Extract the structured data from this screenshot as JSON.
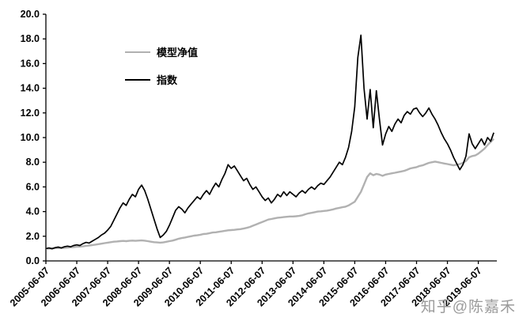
{
  "watermark": {
    "text": "知乎@陈嘉禾",
    "color": "#9b9b9b"
  },
  "chart_data": {
    "type": "line",
    "title": "",
    "xlabel": "",
    "ylabel": "",
    "axis_color": "#000000",
    "background_color": "#ffffff",
    "ylim": [
      0,
      20
    ],
    "xlim": [
      0,
      14.6
    ],
    "y_tick_labels": [
      "0.0",
      "2.0",
      "4.0",
      "6.0",
      "8.0",
      "10.0",
      "12.0",
      "14.0",
      "16.0",
      "18.0",
      "20.0"
    ],
    "y_tick_values": [
      0,
      2,
      4,
      6,
      8,
      10,
      12,
      14,
      16,
      18,
      20
    ],
    "x_tick_labels": [
      "2005-06-07",
      "2006-06-07",
      "2007-06-07",
      "2008-06-07",
      "2009-06-07",
      "2010-06-07",
      "2011-06-07",
      "2012-06-07",
      "2013-06-07",
      "2014-06-07",
      "2015-06-07",
      "2016-06-07",
      "2017-06-07",
      "2018-06-07",
      "2019-06-07"
    ],
    "x_tick_values": [
      0,
      1,
      2,
      3,
      4,
      5,
      6,
      7,
      8,
      9,
      10,
      11,
      12,
      13,
      14
    ],
    "legend_position": "upper-left-inside",
    "grid": false,
    "x0": 0,
    "dx": 0.1,
    "series": [
      {
        "name": "模型净值",
        "color": "#b1b1b1",
        "stroke_width": 2.4,
        "values": [
          1.0,
          1.0,
          1.02,
          1.03,
          1.05,
          1.04,
          1.06,
          1.08,
          1.1,
          1.12,
          1.15,
          1.16,
          1.18,
          1.22,
          1.25,
          1.28,
          1.32,
          1.36,
          1.4,
          1.44,
          1.48,
          1.52,
          1.56,
          1.58,
          1.6,
          1.62,
          1.6,
          1.63,
          1.65,
          1.63,
          1.65,
          1.66,
          1.64,
          1.6,
          1.56,
          1.52,
          1.5,
          1.48,
          1.5,
          1.55,
          1.6,
          1.65,
          1.72,
          1.8,
          1.85,
          1.9,
          1.95,
          2.0,
          2.05,
          2.08,
          2.12,
          2.18,
          2.2,
          2.25,
          2.3,
          2.32,
          2.36,
          2.4,
          2.44,
          2.48,
          2.5,
          2.52,
          2.55,
          2.58,
          2.62,
          2.68,
          2.75,
          2.85,
          2.95,
          3.05,
          3.15,
          3.25,
          3.35,
          3.4,
          3.45,
          3.5,
          3.52,
          3.55,
          3.58,
          3.6,
          3.6,
          3.62,
          3.65,
          3.7,
          3.78,
          3.85,
          3.9,
          3.95,
          4.0,
          4.02,
          4.05,
          4.08,
          4.12,
          4.18,
          4.25,
          4.3,
          4.35,
          4.4,
          4.5,
          4.65,
          4.8,
          5.2,
          5.6,
          6.2,
          6.8,
          7.1,
          6.95,
          7.05,
          7.0,
          6.9,
          7.0,
          7.05,
          7.1,
          7.15,
          7.2,
          7.25,
          7.3,
          7.4,
          7.5,
          7.55,
          7.6,
          7.7,
          7.75,
          7.85,
          7.95,
          8.0,
          8.05,
          8.0,
          7.95,
          7.9,
          7.85,
          7.8,
          7.75,
          7.8,
          7.85,
          7.95,
          8.1,
          8.4,
          8.5,
          8.55,
          8.7,
          8.9,
          9.1,
          9.4,
          9.65,
          9.9
        ]
      },
      {
        "name": "指数",
        "color": "#000000",
        "stroke_width": 1.7,
        "values": [
          1.0,
          1.05,
          0.98,
          1.08,
          1.12,
          1.05,
          1.15,
          1.2,
          1.15,
          1.25,
          1.3,
          1.25,
          1.4,
          1.5,
          1.45,
          1.6,
          1.75,
          1.9,
          2.1,
          2.25,
          2.5,
          2.8,
          3.3,
          3.8,
          4.3,
          4.7,
          4.5,
          5.0,
          5.4,
          5.2,
          5.8,
          6.15,
          5.7,
          5.0,
          4.2,
          3.4,
          2.6,
          1.9,
          2.1,
          2.4,
          2.9,
          3.5,
          4.1,
          4.4,
          4.2,
          3.9,
          4.3,
          4.6,
          4.9,
          5.2,
          5.0,
          5.4,
          5.7,
          5.4,
          5.9,
          6.3,
          6.0,
          6.6,
          7.1,
          7.8,
          7.5,
          7.7,
          7.3,
          6.9,
          6.5,
          6.7,
          6.2,
          5.8,
          6.0,
          5.6,
          5.2,
          4.9,
          5.1,
          4.7,
          5.0,
          5.4,
          5.2,
          5.6,
          5.3,
          5.6,
          5.4,
          5.2,
          5.5,
          5.7,
          5.5,
          5.8,
          6.0,
          5.8,
          6.1,
          6.3,
          6.2,
          6.5,
          6.8,
          7.2,
          7.6,
          8.0,
          7.8,
          8.4,
          9.2,
          10.5,
          12.5,
          16.5,
          18.3,
          14.0,
          11.5,
          13.9,
          10.8,
          13.8,
          11.5,
          9.4,
          10.3,
          10.9,
          10.5,
          11.1,
          11.5,
          11.2,
          11.8,
          12.1,
          11.9,
          12.3,
          12.4,
          12.0,
          11.7,
          12.0,
          12.4,
          11.9,
          11.5,
          11.0,
          10.4,
          9.9,
          9.5,
          9.0,
          8.4,
          7.9,
          7.4,
          7.8,
          8.5,
          10.3,
          9.5,
          9.1,
          9.5,
          9.9,
          9.4,
          10.0,
          9.7,
          10.4
        ]
      }
    ]
  }
}
